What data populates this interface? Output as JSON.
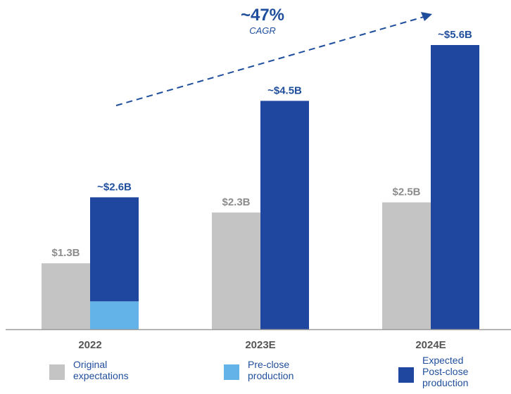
{
  "chart_data": {
    "type": "bar",
    "categories": [
      "2022",
      "2023E",
      "2024E"
    ],
    "series": [
      {
        "name": "Original expectations",
        "values": [
          1.3,
          2.3,
          2.5
        ],
        "labels": [
          "$1.3B",
          "$2.3B",
          "$2.5B"
        ]
      },
      {
        "name": "Pre-close production",
        "values": [
          0.55,
          0,
          0
        ]
      },
      {
        "name": "Expected Post-close production",
        "values": [
          2.05,
          4.5,
          5.6
        ]
      }
    ],
    "totals": [
      2.6,
      4.5,
      5.6
    ],
    "total_labels": [
      "~$2.6B",
      "~$4.5B",
      "~$5.6B"
    ],
    "stacked_series": [
      "Pre-close production",
      "Expected Post-close production"
    ],
    "ylim": [
      0,
      5.6
    ],
    "grid": false,
    "legend_placement": "bottom",
    "annotation": {
      "value": "~47%",
      "label": "CAGR"
    },
    "colors": {
      "Original expectations": "#c4c4c4",
      "Pre-close production": "#63b3e9",
      "Expected Post-close production": "#1f47a0",
      "label_gray": "#8c8c8c",
      "label_blue": "#1f4e9c",
      "axis": "#9a9a9a",
      "tick": "#555555"
    }
  },
  "legend": [
    {
      "lines": [
        "Original",
        "expectations"
      ]
    },
    {
      "lines": [
        "Pre-close",
        "production"
      ]
    },
    {
      "lines": [
        "Expected",
        "Post-close",
        "production"
      ]
    }
  ]
}
